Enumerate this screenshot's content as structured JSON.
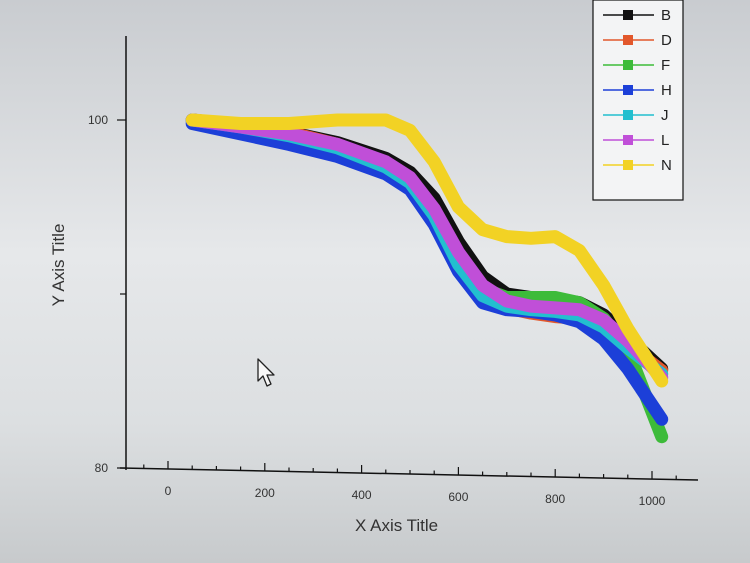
{
  "chart_data": {
    "type": "line",
    "xlabel": "X Axis Title",
    "ylabel": "Y Axis Title",
    "xlim": [
      -100,
      1050
    ],
    "ylim": [
      80,
      105
    ],
    "x_ticks": [
      0,
      200,
      400,
      600,
      800,
      1000
    ],
    "y_ticks": [
      80,
      100
    ],
    "grid": false,
    "legend_position": "top-right",
    "series": [
      {
        "name": "B",
        "color": "#111111",
        "x": [
          50,
          150,
          250,
          350,
          450,
          500,
          550,
          600,
          650,
          700,
          750,
          800,
          850,
          900,
          950,
          1020
        ],
        "y": [
          100,
          99.7,
          99.3,
          98.7,
          97.8,
          97,
          95.5,
          93,
          91,
          90,
          89.8,
          89.7,
          89.5,
          88.8,
          87.5,
          85.7
        ]
      },
      {
        "name": "D",
        "color": "#e2572b",
        "x": [
          50,
          150,
          250,
          350,
          450,
          500,
          550,
          600,
          650,
          700,
          750,
          800,
          850,
          900,
          950,
          1020
        ],
        "y": [
          100,
          99.7,
          99.3,
          98.6,
          97.5,
          96.6,
          94.8,
          92,
          90,
          89.2,
          88.9,
          88.7,
          88.6,
          88.1,
          87.1,
          85.6
        ]
      },
      {
        "name": "F",
        "color": "#3dbb3a",
        "x": [
          50,
          150,
          250,
          350,
          450,
          500,
          550,
          600,
          650,
          700,
          750,
          800,
          850,
          900,
          950,
          1020
        ],
        "y": [
          100,
          99.5,
          99,
          98.3,
          97.4,
          96.4,
          94.5,
          92,
          90.3,
          89.8,
          89.8,
          89.8,
          89.5,
          88.6,
          86.8,
          81.8
        ]
      },
      {
        "name": "H",
        "color": "#1c3fd8",
        "x": [
          50,
          150,
          250,
          350,
          450,
          500,
          550,
          600,
          650,
          700,
          750,
          800,
          850,
          900,
          950,
          1020
        ],
        "y": [
          99.8,
          99.2,
          98.6,
          97.9,
          96.9,
          96,
          94,
          91.3,
          89.5,
          89.1,
          89,
          88.8,
          88.4,
          87.4,
          85.7,
          82.8
        ]
      },
      {
        "name": "J",
        "color": "#22bfcf",
        "x": [
          50,
          150,
          250,
          350,
          450,
          500,
          550,
          600,
          650,
          700,
          750,
          800,
          850,
          900,
          950,
          1020
        ],
        "y": [
          100,
          99.6,
          99.1,
          98.4,
          97.3,
          96.4,
          94.5,
          91.7,
          89.9,
          89.3,
          89.1,
          89,
          88.8,
          88.1,
          86.9,
          85.4
        ]
      },
      {
        "name": "L",
        "color": "#c04fd8",
        "x": [
          50,
          150,
          250,
          350,
          450,
          500,
          550,
          600,
          650,
          700,
          750,
          800,
          850,
          900,
          950,
          1020
        ],
        "y": [
          100,
          99.6,
          99.2,
          98.6,
          97.6,
          96.7,
          94.9,
          92.4,
          90.5,
          89.6,
          89.3,
          89.2,
          89.1,
          88.5,
          87.3,
          85.2
        ]
      },
      {
        "name": "N",
        "color": "#f2d224",
        "x": [
          50,
          150,
          250,
          350,
          450,
          500,
          550,
          600,
          650,
          700,
          750,
          800,
          850,
          900,
          950,
          1020
        ],
        "y": [
          100,
          99.8,
          99.8,
          100,
          100,
          99.4,
          97.6,
          95,
          93.7,
          93.3,
          93.2,
          93.3,
          92.5,
          90.5,
          88,
          85
        ]
      }
    ]
  }
}
